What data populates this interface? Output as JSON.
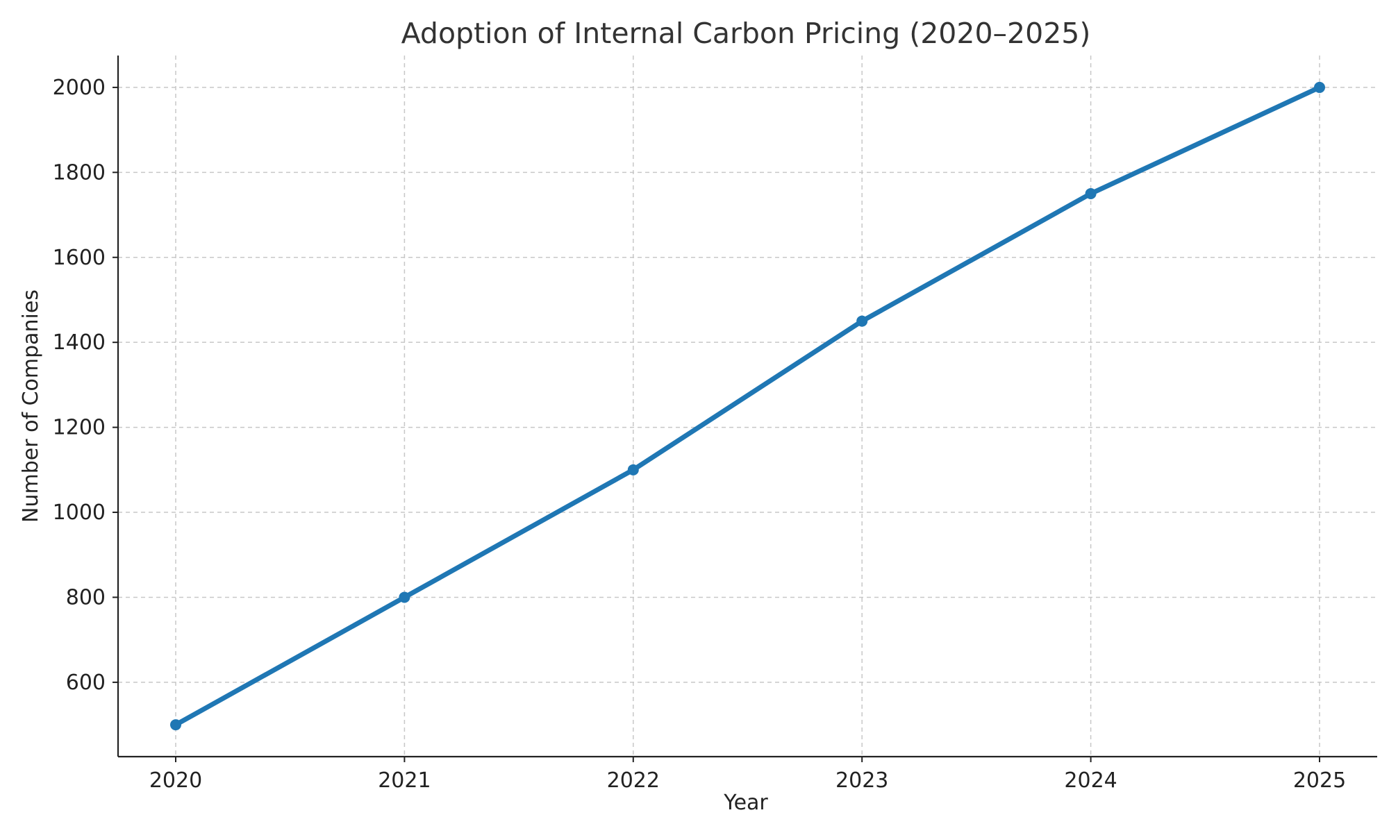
{
  "chart_data": {
    "type": "line",
    "title": "Adoption of Internal Carbon Pricing (2020–2025)",
    "xlabel": "Year",
    "ylabel": "Number of Companies",
    "x": [
      "2020",
      "2021",
      "2022",
      "2023",
      "2024",
      "2025"
    ],
    "series": [
      {
        "values": [
          500,
          800,
          1100,
          1450,
          1750,
          2000
        ],
        "color": "#1f77b4",
        "marker": "circle"
      }
    ],
    "y_ticks": [
      600,
      800,
      1000,
      1200,
      1400,
      1600,
      1800,
      2000
    ],
    "ylim": [
      425,
      2075
    ],
    "grid": true,
    "grid_style": "dashed",
    "legend": "none"
  }
}
